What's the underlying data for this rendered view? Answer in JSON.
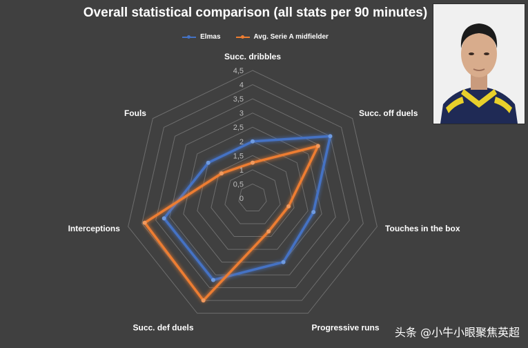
{
  "chart_data": {
    "type": "radar",
    "title": "Overall statistical comparison (all stats per 90 minutes)",
    "axes": [
      "Succ. dribbles",
      "Succ. off duels",
      "Touches in the box",
      "Progressive runs",
      "Succ. def duels",
      "Interceptions",
      "Fouls"
    ],
    "ticks": [
      "0",
      "0,5",
      "1",
      "1,5",
      "2",
      "2,5",
      "3",
      "3,5",
      "4",
      "4,5"
    ],
    "rmax": 4.5,
    "series": [
      {
        "name": "Elmas",
        "color": "#4472c4",
        "values": [
          2.0,
          3.5,
          2.2,
          2.5,
          3.2,
          3.2,
          2.0
        ]
      },
      {
        "name": "Avg. Serie A midfielder",
        "color": "#ed7d31",
        "values": [
          1.25,
          2.95,
          1.3,
          1.3,
          4.0,
          3.9,
          1.4
        ]
      }
    ]
  },
  "watermark": "头条 @小牛小眼聚焦英超"
}
